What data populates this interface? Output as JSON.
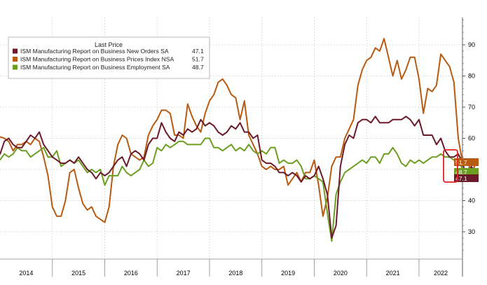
{
  "chart_data": {
    "type": "line",
    "title": "",
    "xlabel": "",
    "ylabel": "",
    "ylim": [
      20,
      100
    ],
    "xlim": [
      2014.0,
      2022.83
    ],
    "yticks": [
      30,
      40,
      50,
      60,
      70,
      80,
      90
    ],
    "x_tick_labels": [
      "2014",
      "2015",
      "2016",
      "2017",
      "2018",
      "2019",
      "2020",
      "2021",
      "2022"
    ],
    "y_axis_side": "right",
    "grid": true,
    "legend": {
      "title": "Last Price",
      "position": "top-left"
    },
    "series": [
      {
        "name": "ISM Manufacturing Report on Business New Orders SA",
        "last_label": "47.1",
        "color": "#6b1a2a",
        "x_start": 2014.0,
        "step_months": 1,
        "values": [
          54.8,
          59,
          60,
          58,
          57,
          57,
          59,
          61,
          60,
          62,
          58,
          56,
          54,
          53,
          52,
          52,
          53,
          52,
          54,
          52,
          50,
          49,
          47,
          49,
          48,
          49,
          51,
          53,
          54,
          51,
          55,
          56,
          55,
          53,
          58,
          60,
          60,
          65,
          62,
          60,
          59,
          62,
          61,
          63,
          62,
          63,
          66,
          64,
          65,
          64,
          62,
          61,
          62,
          64,
          63,
          65,
          62,
          62,
          60,
          61,
          53,
          52,
          52,
          51,
          49,
          49,
          48,
          49,
          48,
          46,
          48,
          47,
          48,
          51,
          47,
          42,
          28,
          32,
          51,
          58,
          61,
          60,
          65,
          66,
          66,
          65,
          67,
          65,
          65,
          65,
          66,
          66,
          66,
          67,
          66,
          64,
          66,
          61,
          61,
          61,
          58,
          60,
          56,
          54,
          54,
          55,
          52,
          47,
          51,
          47.1
        ]
      },
      {
        "name": "ISM Manufacturing Report on Business Prices Index NSA",
        "last_label": "51.7",
        "color": "#b85a10",
        "x_start": 2014.0,
        "step_months": 1,
        "values": [
          60.5,
          60,
          59,
          56,
          58,
          58,
          59,
          58,
          60,
          59,
          54,
          48,
          38,
          35,
          35,
          40,
          49,
          50,
          44,
          39,
          37,
          38,
          35,
          34,
          33,
          38,
          51,
          58,
          61,
          60,
          55,
          54,
          53,
          54,
          61,
          64,
          66,
          69,
          69,
          68,
          61,
          61,
          60,
          71,
          67,
          64,
          62,
          68,
          72,
          74,
          78,
          79,
          77,
          74,
          73,
          66,
          72,
          61,
          58,
          55,
          51,
          50,
          51,
          50,
          50,
          51,
          45,
          47,
          49,
          46,
          49,
          49,
          53,
          45,
          35,
          41,
          51,
          54,
          54,
          60,
          63,
          66,
          77,
          82,
          85,
          86,
          89,
          88,
          92,
          86,
          80,
          85,
          79,
          82,
          86,
          86,
          79,
          68,
          76,
          75,
          77,
          87,
          85,
          83,
          78,
          60,
          52,
          53,
          49,
          51.7
        ]
      },
      {
        "name": "ISM Manufacturing Report on Business Employment SA",
        "last_label": "48.7",
        "color": "#6c9e22",
        "x_start": 2014.0,
        "step_months": 1,
        "values": [
          53,
          55,
          54,
          55,
          57,
          56,
          56,
          54,
          55,
          56,
          57,
          54,
          54,
          56,
          51,
          52,
          53,
          52,
          53,
          51,
          49,
          50,
          49,
          50,
          45,
          48,
          48,
          48,
          51,
          49,
          48,
          49,
          50,
          53,
          51,
          52,
          57,
          56,
          58,
          57,
          58,
          59,
          59,
          58,
          58,
          58,
          58,
          60,
          60,
          57,
          57,
          56,
          57,
          58,
          56,
          57,
          56,
          58,
          56,
          55,
          56,
          55,
          57,
          57,
          52,
          53,
          52,
          52,
          53,
          51,
          47,
          47,
          48,
          47,
          46,
          36,
          27,
          42,
          46,
          49,
          50,
          51,
          52,
          53,
          52,
          54,
          54,
          52,
          55,
          55,
          57,
          55,
          52,
          51,
          53,
          52,
          53,
          52,
          53,
          54,
          54,
          55,
          54,
          54,
          53,
          53,
          50,
          49,
          49,
          48.7
        ]
      }
    ]
  }
}
